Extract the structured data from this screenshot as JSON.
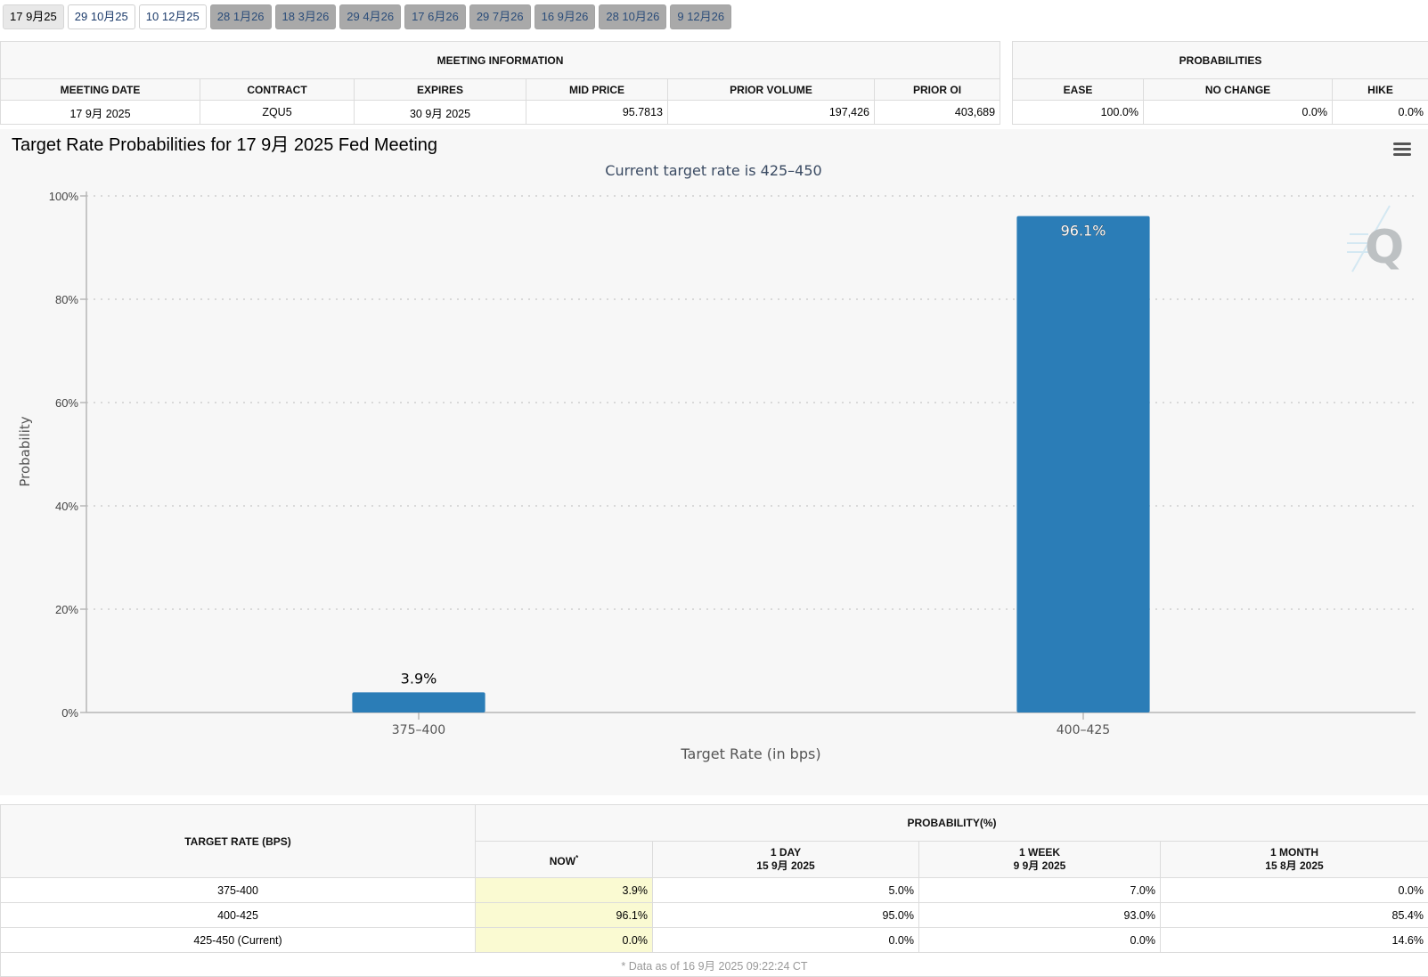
{
  "tabs": [
    {
      "label": "17 9月25",
      "state": "active"
    },
    {
      "label": "29 10月25",
      "state": "normal"
    },
    {
      "label": "10 12月25",
      "state": "normal"
    },
    {
      "label": "28 1月26",
      "state": "disabled"
    },
    {
      "label": "18 3月26",
      "state": "disabled"
    },
    {
      "label": "29 4月26",
      "state": "disabled"
    },
    {
      "label": "17 6月26",
      "state": "disabled"
    },
    {
      "label": "29 7月26",
      "state": "disabled"
    },
    {
      "label": "16 9月26",
      "state": "disabled"
    },
    {
      "label": "28 10月26",
      "state": "disabled"
    },
    {
      "label": "9 12月26",
      "state": "disabled"
    }
  ],
  "meeting_info": {
    "title": "MEETING INFORMATION",
    "headers": [
      "MEETING DATE",
      "CONTRACT",
      "EXPIRES",
      "MID PRICE",
      "PRIOR VOLUME",
      "PRIOR OI"
    ],
    "row": [
      "17 9月 2025",
      "ZQU5",
      "30 9月 2025",
      "95.7813",
      "197,426",
      "403,689"
    ]
  },
  "probabilities": {
    "title": "PROBABILITIES",
    "headers": [
      "EASE",
      "NO CHANGE",
      "HIKE"
    ],
    "row": [
      "100.0%",
      "0.0%",
      "0.0%"
    ]
  },
  "chart_data": {
    "type": "bar",
    "title": "Target Rate Probabilities for 17 9月 2025 Fed Meeting",
    "subtitle": "Current target rate is 425–450",
    "xlabel": "Target Rate (in bps)",
    "ylabel": "Probability",
    "categories": [
      "375–400",
      "400–425"
    ],
    "values": [
      3.9,
      96.1
    ],
    "data_labels": [
      "3.9%",
      "96.1%"
    ],
    "ylim": [
      0,
      100
    ],
    "yticks": [
      0,
      20,
      40,
      60,
      80,
      100
    ],
    "ytick_labels": [
      "0%",
      "20%",
      "40%",
      "60%",
      "80%",
      "100%"
    ],
    "grid": true,
    "bar_color": "#2b7db7",
    "menu_icon": "hamburger-menu-icon",
    "watermark_icon": "q-logo-icon"
  },
  "rate_table": {
    "rate_header": "TARGET RATE (BPS)",
    "prob_header": "PROBABILITY(%)",
    "columns": [
      {
        "label": "NOW",
        "sup": "*",
        "date": ""
      },
      {
        "label": "1 DAY",
        "date": "15 9月 2025"
      },
      {
        "label": "1 WEEK",
        "date": "9 9月 2025"
      },
      {
        "label": "1 MONTH",
        "date": "15 8月 2025"
      }
    ],
    "rows": [
      {
        "rate": "375-400",
        "values": [
          "3.9%",
          "5.0%",
          "7.0%",
          "0.0%"
        ]
      },
      {
        "rate": "400-425",
        "values": [
          "96.1%",
          "95.0%",
          "93.0%",
          "85.4%"
        ]
      },
      {
        "rate": "425-450 (Current)",
        "values": [
          "0.0%",
          "0.0%",
          "0.0%",
          "14.6%"
        ]
      }
    ],
    "footnote": "* Data as of 16 9月 2025 09:22:24 CT"
  }
}
